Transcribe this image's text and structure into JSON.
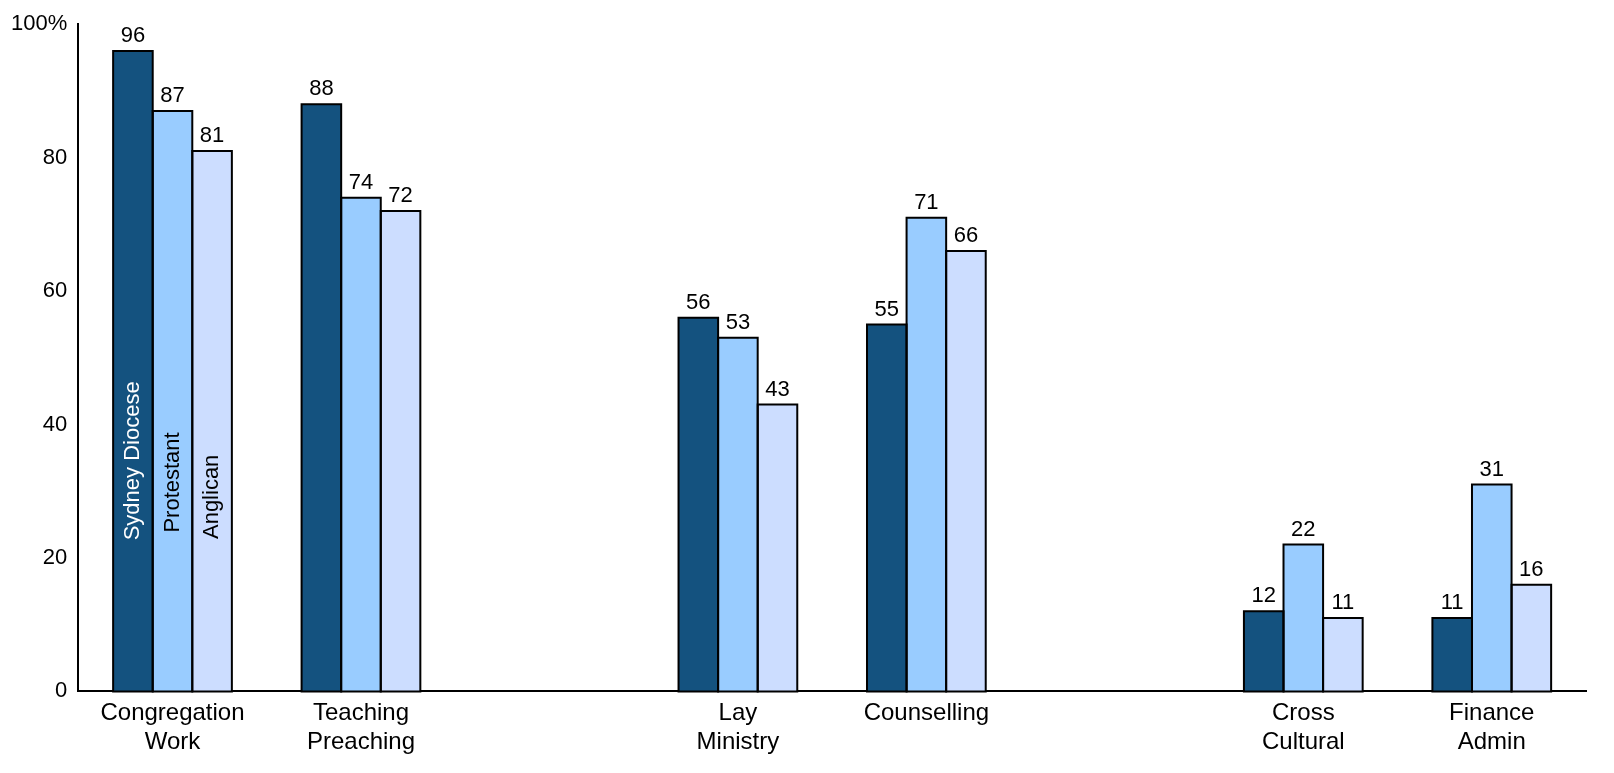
{
  "chart_data": {
    "type": "bar",
    "categories": [
      "Congregation Work",
      "Teaching Preaching",
      null,
      "Lay Ministry",
      "Counselling",
      null,
      "Cross Cultural",
      "Finance Admin"
    ],
    "series": [
      {
        "name": "Sydney Diocese",
        "color": "#14527f",
        "values": [
          96,
          88,
          null,
          56,
          55,
          null,
          12,
          11
        ]
      },
      {
        "name": "Protestant",
        "color": "#99ccff",
        "values": [
          87,
          74,
          null,
          53,
          71,
          null,
          22,
          31
        ]
      },
      {
        "name": "Anglican",
        "color": "#ccddff",
        "values": [
          81,
          72,
          null,
          43,
          66,
          null,
          11,
          16
        ]
      }
    ],
    "ylim": [
      0,
      100
    ],
    "yticks": [
      0,
      20,
      40,
      60,
      80,
      {
        "value": 100,
        "label": "100%"
      }
    ],
    "grid": false,
    "legend": false,
    "data_labels": true
  }
}
